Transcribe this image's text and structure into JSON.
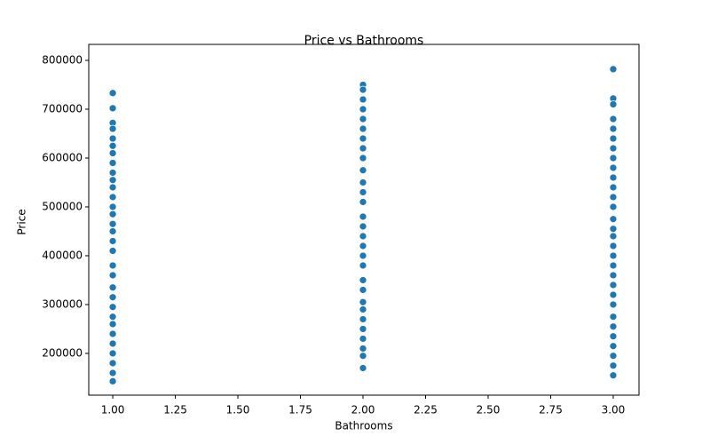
{
  "chart_data": {
    "type": "scatter",
    "title": "Price vs Bathrooms",
    "x_label": "Bathrooms",
    "y_label": "Price",
    "color": "#1f77b4",
    "x": [
      1,
      1,
      1,
      1,
      1,
      1,
      1,
      1,
      1,
      1,
      1,
      1,
      1,
      1,
      1,
      1,
      1,
      1,
      1,
      1,
      1,
      1,
      1,
      1,
      1,
      1,
      1,
      1,
      1,
      1,
      1,
      2,
      2,
      2,
      2,
      2,
      2,
      2,
      2,
      2,
      2,
      2,
      2,
      2,
      2,
      2,
      2,
      2,
      2,
      2,
      2,
      2,
      2,
      2,
      2,
      2,
      2,
      2,
      2,
      2,
      3,
      3,
      3,
      3,
      3,
      3,
      3,
      3,
      3,
      3,
      3,
      3,
      3,
      3,
      3,
      3,
      3,
      3,
      3,
      3,
      3,
      3,
      3,
      3,
      3,
      3,
      3,
      3,
      3,
      3
    ],
    "y": [
      733000,
      702000,
      672000,
      660000,
      640000,
      625000,
      610000,
      590000,
      570000,
      555000,
      540000,
      520000,
      500000,
      485000,
      465000,
      450000,
      430000,
      410000,
      380000,
      360000,
      335000,
      315000,
      295000,
      275000,
      260000,
      240000,
      220000,
      200000,
      180000,
      160000,
      143000,
      750000,
      740000,
      720000,
      700000,
      680000,
      660000,
      640000,
      620000,
      600000,
      575000,
      550000,
      530000,
      510000,
      480000,
      460000,
      440000,
      420000,
      400000,
      380000,
      350000,
      330000,
      305000,
      290000,
      270000,
      250000,
      230000,
      210000,
      195000,
      170000,
      782000,
      722000,
      710000,
      680000,
      660000,
      640000,
      620000,
      600000,
      580000,
      560000,
      540000,
      520000,
      500000,
      475000,
      455000,
      440000,
      420000,
      400000,
      380000,
      360000,
      340000,
      320000,
      300000,
      275000,
      255000,
      235000,
      215000,
      195000,
      175000,
      155000
    ],
    "xlim": [
      0.904,
      3.103
    ],
    "ylim": [
      114500,
      832700
    ],
    "xticks": [
      {
        "value": 1,
        "label": "1.00"
      },
      {
        "value": 1.25,
        "label": "1.25"
      },
      {
        "value": 1.5,
        "label": "1.50"
      },
      {
        "value": 1.75,
        "label": "1.75"
      },
      {
        "value": 2,
        "label": "2.00"
      },
      {
        "value": 2.25,
        "label": "2.25"
      },
      {
        "value": 2.5,
        "label": "2.50"
      },
      {
        "value": 2.75,
        "label": "2.75"
      },
      {
        "value": 3,
        "label": "3.00"
      }
    ],
    "yticks": [
      200000,
      300000,
      400000,
      500000,
      600000,
      700000,
      800000
    ]
  }
}
